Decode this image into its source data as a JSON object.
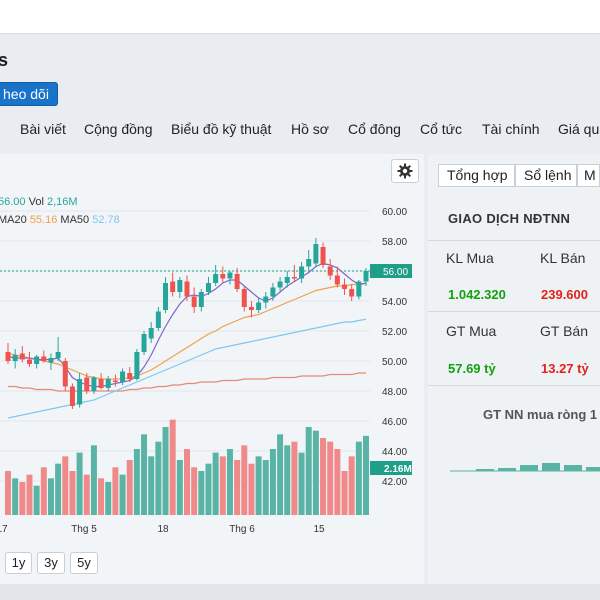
{
  "header": {
    "title": "s",
    "follow_label": "heo dõi"
  },
  "tabs": [
    "Bài viết",
    "Cộng đồng",
    "Biểu đồ kỹ thuật",
    "Hồ sơ",
    "Cổ đông",
    "Cổ tức",
    "Tài chính",
    "Giá qu"
  ],
  "chart_legend": {
    "close_value": "56.00",
    "vol_label": "Vol",
    "vol_value": "2,16M",
    "ma20_label": "MA20",
    "ma20_value": "55.16",
    "ma50_label": "MA50",
    "ma50_value": "52.78",
    "ma_colors": {
      "ma5": "#7b68c8",
      "ma20": "#f0a04b",
      "ma50": "#7ec8f0",
      "ma200": "#e8867a"
    }
  },
  "chart_data": {
    "type": "candlestick",
    "y_ticks": [
      "60.00",
      "58.00",
      "56.00",
      "54.00",
      "52.00",
      "50.00",
      "48.00",
      "46.00",
      "44.00",
      "42.00"
    ],
    "x_ticks": [
      "17",
      "Thg 5",
      "18",
      "Thg 6",
      "15"
    ],
    "last_price_label": "56.00",
    "last_volume_label": "2.16M",
    "ylim": [
      41,
      61
    ],
    "candles": [
      {
        "o": 50.6,
        "h": 51.2,
        "l": 49.8,
        "c": 50.0
      },
      {
        "o": 50.0,
        "h": 50.8,
        "l": 49.5,
        "c": 50.4
      },
      {
        "o": 50.5,
        "h": 51.0,
        "l": 49.9,
        "c": 50.1
      },
      {
        "o": 50.1,
        "h": 50.6,
        "l": 49.6,
        "c": 49.8
      },
      {
        "o": 49.8,
        "h": 50.4,
        "l": 49.5,
        "c": 50.3
      },
      {
        "o": 50.3,
        "h": 50.7,
        "l": 49.9,
        "c": 50.0
      },
      {
        "o": 49.9,
        "h": 50.5,
        "l": 49.4,
        "c": 50.2
      },
      {
        "o": 50.2,
        "h": 51.6,
        "l": 50.0,
        "c": 50.6
      },
      {
        "o": 50.0,
        "h": 50.2,
        "l": 48.0,
        "c": 48.3
      },
      {
        "o": 48.3,
        "h": 48.5,
        "l": 46.8,
        "c": 47.0
      },
      {
        "o": 47.1,
        "h": 49.2,
        "l": 46.9,
        "c": 48.8
      },
      {
        "o": 48.9,
        "h": 49.2,
        "l": 47.8,
        "c": 48.0
      },
      {
        "o": 48.0,
        "h": 49.0,
        "l": 47.8,
        "c": 48.9
      },
      {
        "o": 48.8,
        "h": 49.2,
        "l": 48.1,
        "c": 48.2
      },
      {
        "o": 48.2,
        "h": 49.0,
        "l": 48.0,
        "c": 48.8
      },
      {
        "o": 48.7,
        "h": 49.1,
        "l": 48.3,
        "c": 48.6
      },
      {
        "o": 48.6,
        "h": 49.5,
        "l": 48.4,
        "c": 49.3
      },
      {
        "o": 49.2,
        "h": 49.6,
        "l": 48.6,
        "c": 48.8
      },
      {
        "o": 48.8,
        "h": 50.8,
        "l": 48.7,
        "c": 50.6
      },
      {
        "o": 50.6,
        "h": 52.0,
        "l": 50.4,
        "c": 51.8
      },
      {
        "o": 51.5,
        "h": 52.6,
        "l": 51.2,
        "c": 52.2
      },
      {
        "o": 52.2,
        "h": 53.6,
        "l": 52.0,
        "c": 53.3
      },
      {
        "o": 53.4,
        "h": 55.6,
        "l": 53.2,
        "c": 55.2
      },
      {
        "o": 55.3,
        "h": 55.9,
        "l": 54.3,
        "c": 54.6
      },
      {
        "o": 54.6,
        "h": 55.6,
        "l": 54.2,
        "c": 55.4
      },
      {
        "o": 55.3,
        "h": 55.7,
        "l": 54.0,
        "c": 54.3
      },
      {
        "o": 54.3,
        "h": 54.9,
        "l": 53.2,
        "c": 53.6
      },
      {
        "o": 53.6,
        "h": 54.8,
        "l": 53.3,
        "c": 54.6
      },
      {
        "o": 54.6,
        "h": 55.6,
        "l": 54.4,
        "c": 55.2
      },
      {
        "o": 55.2,
        "h": 56.4,
        "l": 55.0,
        "c": 55.8
      },
      {
        "o": 55.8,
        "h": 56.3,
        "l": 55.2,
        "c": 55.5
      },
      {
        "o": 55.5,
        "h": 56.0,
        "l": 55.1,
        "c": 55.9
      },
      {
        "o": 55.8,
        "h": 56.2,
        "l": 54.6,
        "c": 54.8
      },
      {
        "o": 54.8,
        "h": 55.0,
        "l": 53.3,
        "c": 53.6
      },
      {
        "o": 53.6,
        "h": 54.0,
        "l": 52.9,
        "c": 53.4
      },
      {
        "o": 53.4,
        "h": 54.2,
        "l": 53.2,
        "c": 53.9
      },
      {
        "o": 53.9,
        "h": 54.6,
        "l": 53.5,
        "c": 54.3
      },
      {
        "o": 54.3,
        "h": 55.2,
        "l": 54.0,
        "c": 54.9
      },
      {
        "o": 54.9,
        "h": 55.6,
        "l": 54.6,
        "c": 55.3
      },
      {
        "o": 55.2,
        "h": 56.0,
        "l": 54.9,
        "c": 55.6
      },
      {
        "o": 55.6,
        "h": 56.4,
        "l": 55.3,
        "c": 55.5
      },
      {
        "o": 55.5,
        "h": 56.6,
        "l": 55.2,
        "c": 56.3
      },
      {
        "o": 56.3,
        "h": 57.4,
        "l": 56.0,
        "c": 56.8
      },
      {
        "o": 56.5,
        "h": 58.2,
        "l": 56.3,
        "c": 57.8
      },
      {
        "o": 57.6,
        "h": 57.9,
        "l": 56.2,
        "c": 56.4
      },
      {
        "o": 56.3,
        "h": 56.8,
        "l": 55.4,
        "c": 55.7
      },
      {
        "o": 55.7,
        "h": 56.3,
        "l": 54.9,
        "c": 55.1
      },
      {
        "o": 55.1,
        "h": 55.5,
        "l": 54.4,
        "c": 54.8
      },
      {
        "o": 54.8,
        "h": 55.1,
        "l": 54.0,
        "c": 54.3
      },
      {
        "o": 54.3,
        "h": 55.4,
        "l": 54.1,
        "c": 55.3
      },
      {
        "o": 55.3,
        "h": 56.2,
        "l": 55.0,
        "c": 56.0
      }
    ],
    "volume_ylim": [
      0,
      3.0
    ],
    "volumes": [
      1.2,
      1.0,
      0.9,
      1.1,
      0.8,
      1.3,
      1.0,
      1.4,
      1.6,
      1.2,
      1.7,
      1.1,
      1.9,
      1.0,
      0.9,
      1.3,
      1.1,
      1.5,
      1.8,
      2.2,
      1.6,
      2.0,
      2.4,
      2.6,
      1.5,
      1.8,
      1.3,
      1.2,
      1.4,
      1.7,
      1.6,
      1.8,
      1.5,
      1.9,
      1.4,
      1.6,
      1.5,
      1.8,
      2.2,
      1.9,
      2.0,
      1.7,
      2.4,
      2.3,
      2.1,
      2.0,
      1.8,
      1.2,
      1.6,
      2.0,
      2.16
    ],
    "ma5": [
      50.3,
      50.2,
      50.2,
      50.2,
      50.1,
      50.1,
      50.1,
      50.2,
      49.6,
      48.9,
      48.6,
      48.4,
      48.3,
      48.3,
      48.4,
      48.5,
      48.6,
      48.7,
      49.0,
      49.6,
      50.4,
      51.4,
      52.3,
      53.1,
      53.8,
      54.3,
      54.4,
      54.3,
      54.5,
      54.8,
      55.2,
      55.4,
      55.4,
      55.0,
      54.6,
      54.2,
      54.0,
      54.2,
      54.6,
      55.0,
      55.3,
      55.6,
      55.9,
      56.3,
      56.5,
      56.4,
      56.2,
      55.8,
      55.4,
      55.1,
      55.2
    ],
    "ma20": [
      50.5,
      50.4,
      50.3,
      50.2,
      50.1,
      50.0,
      49.9,
      49.8,
      49.6,
      49.4,
      49.2,
      49.0,
      48.9,
      48.8,
      48.8,
      48.8,
      48.8,
      48.9,
      49.0,
      49.2,
      49.4,
      49.7,
      50.0,
      50.3,
      50.6,
      50.9,
      51.2,
      51.5,
      51.8,
      52.0,
      52.3,
      52.5,
      52.7,
      52.9,
      53.0,
      53.1,
      53.3,
      53.5,
      53.7,
      53.9,
      54.1,
      54.3,
      54.5,
      54.7,
      54.8,
      54.9,
      55.0,
      55.0,
      55.1,
      55.1,
      55.16
    ],
    "ma50": [
      46.2,
      46.3,
      46.4,
      46.5,
      46.6,
      46.7,
      46.8,
      46.9,
      47.0,
      47.1,
      47.2,
      47.3,
      47.4,
      47.6,
      47.8,
      48.0,
      48.2,
      48.4,
      48.6,
      48.8,
      49.0,
      49.2,
      49.4,
      49.6,
      49.8,
      50.0,
      50.2,
      50.4,
      50.6,
      50.8,
      50.9,
      51.0,
      51.1,
      51.2,
      51.3,
      51.4,
      51.5,
      51.6,
      51.7,
      51.8,
      51.9,
      52.0,
      52.1,
      52.2,
      52.3,
      52.4,
      52.5,
      52.6,
      52.6,
      52.7,
      52.78
    ],
    "ma200": [
      48.3,
      48.3,
      48.2,
      48.2,
      48.1,
      48.1,
      48.1,
      48.0,
      48.0,
      48.0,
      48.0,
      48.0,
      48.0,
      48.0,
      48.0,
      48.0,
      48.0,
      48.1,
      48.1,
      48.2,
      48.2,
      48.3,
      48.3,
      48.4,
      48.4,
      48.5,
      48.5,
      48.6,
      48.6,
      48.6,
      48.7,
      48.7,
      48.7,
      48.8,
      48.8,
      48.8,
      48.8,
      48.9,
      48.9,
      48.9,
      48.9,
      49.0,
      49.0,
      49.0,
      49.0,
      49.1,
      49.1,
      49.1,
      49.1,
      49.2,
      49.2
    ]
  },
  "period_buttons": [
    "1y",
    "3y",
    "5y"
  ],
  "right_panel": {
    "tabs": [
      "Tổng hợp",
      "Sổ lệnh",
      "M"
    ],
    "title": "GIAO DỊCH NĐTNN",
    "kl_mua_label": "KL Mua",
    "kl_ban_label": "KL Bán",
    "kl_mua_value": "1.042.320",
    "kl_ban_value": "239.600",
    "gt_mua_label": "GT Mua",
    "gt_ban_label": "GT Bán",
    "gt_mua_value": "57.69 tỷ",
    "gt_ban_value": "13.27 tỷ",
    "net_label": "GT NN mua ròng 1",
    "net_bars": [
      0.2,
      0.3,
      0.6,
      0.8,
      0.6,
      0.4,
      0.5
    ]
  },
  "colors": {
    "up": "#26a69a",
    "down": "#ef5350",
    "vol_up": "#5ab4a6",
    "vol_down": "#f08a8a",
    "accent": "#1a73c9",
    "price_tag": "#1f9e8a"
  }
}
